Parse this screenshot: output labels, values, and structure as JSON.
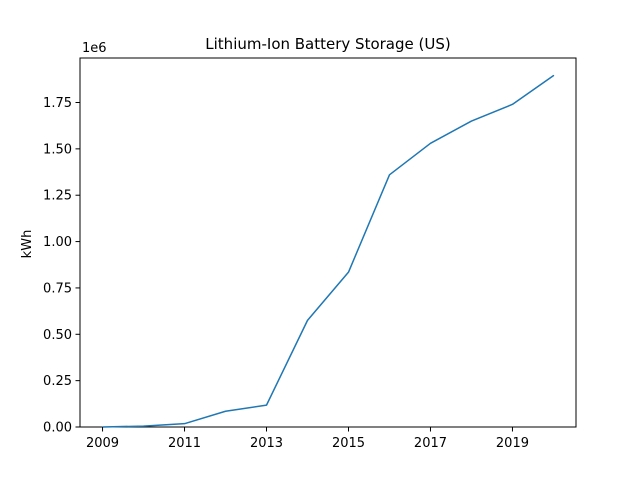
{
  "chart_data": {
    "type": "line",
    "title": "Lithium-Ion Battery Storage (US)",
    "xlabel": "",
    "ylabel": "kWh",
    "y_offset_label": "1e6",
    "y_scale_factor": 1000000,
    "x": [
      2009,
      2010,
      2011,
      2012,
      2013,
      2014,
      2015,
      2016,
      2017,
      2018,
      2019,
      2020
    ],
    "series": [
      {
        "values": [
          0,
          5000,
          18000,
          85000,
          118000,
          575000,
          835000,
          1360000,
          1530000,
          1650000,
          1740000,
          1895000
        ],
        "color": "#1f77b4"
      }
    ],
    "xlim": [
      2008.45,
      2020.55
    ],
    "ylim": [
      0,
      1990000
    ],
    "x_ticks": [
      2009,
      2011,
      2013,
      2015,
      2017,
      2019
    ],
    "y_ticks": [
      0,
      250000,
      500000,
      750000,
      1000000,
      1250000,
      1500000,
      1750000
    ],
    "y_tick_labels": [
      "0.00",
      "0.25",
      "0.50",
      "0.75",
      "1.00",
      "1.25",
      "1.50",
      "1.75"
    ],
    "grid": false,
    "legend": "none"
  }
}
